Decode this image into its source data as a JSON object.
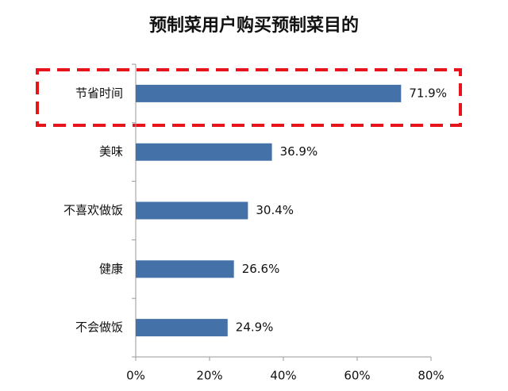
{
  "chart_data": {
    "type": "bar",
    "orientation": "horizontal",
    "title": "预制菜用户购买预制菜目的",
    "categories": [
      "节省时间",
      "美味",
      "不喜欢做饭",
      "健康",
      "不会做饭"
    ],
    "values": [
      71.9,
      36.9,
      30.4,
      26.6,
      24.9
    ],
    "value_labels": [
      "71.9%",
      "36.9%",
      "30.4%",
      "26.6%",
      "24.9%"
    ],
    "color": "#4472a8",
    "xlim": [
      0,
      80
    ],
    "xticks": [
      {
        "value": 0,
        "label": "0%"
      },
      {
        "value": 20,
        "label": "20%"
      },
      {
        "value": 40,
        "label": "40%"
      },
      {
        "value": 60,
        "label": "60%"
      },
      {
        "value": 80,
        "label": "80%"
      }
    ],
    "grid": false
  }
}
